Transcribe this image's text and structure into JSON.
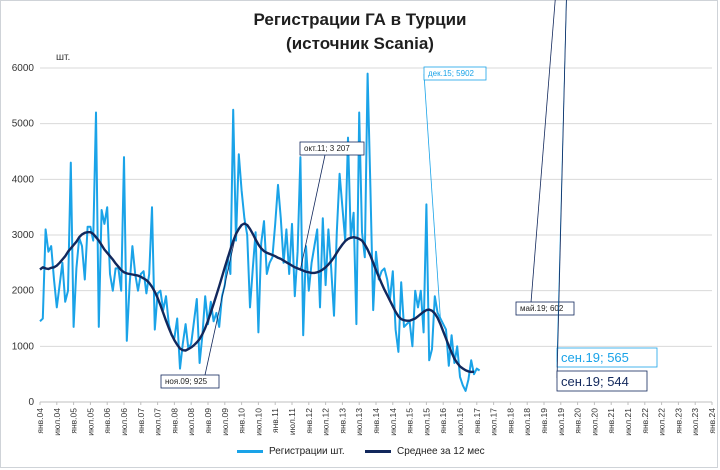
{
  "chart_data": {
    "type": "line",
    "title": "Регистрации ГА в Турции",
    "subtitle": "(источник Scania)",
    "ylabel": "шт.",
    "ylim": [
      0,
      6000
    ],
    "yticks": [
      "0",
      "1000",
      "2000",
      "3000",
      "4000",
      "5000",
      "6000"
    ],
    "grid": true,
    "legend_position": "bottom",
    "x_labels": [
      "янв.04",
      "июл.04",
      "янв.05",
      "июл.05",
      "янв.06",
      "июл.06",
      "янв.07",
      "июл.07",
      "янв.08",
      "июл.08",
      "янв.09",
      "июл.09",
      "янв.10",
      "июл.10",
      "янв.11",
      "июл.11",
      "янв.12",
      "июл.12",
      "янв.13",
      "июл.13",
      "янв.14",
      "июл.14",
      "янв.15",
      "июл.15",
      "янв.16",
      "июл.16",
      "янв.17",
      "июл.17",
      "янв.18",
      "июл.18",
      "янв.19",
      "июл.19",
      "янв.20",
      "июл.20",
      "янв.21",
      "июл.21",
      "янв.22",
      "июл.22",
      "янв.23",
      "июл.23",
      "янв.24"
    ],
    "series": [
      {
        "name": "Регистрации шт.",
        "color": "#1aa3e8",
        "values": [
          1450,
          1500,
          3100,
          2700,
          2800,
          2200,
          1700,
          2100,
          2500,
          1800,
          2000,
          4300,
          1350,
          2400,
          2950,
          2800,
          2200,
          3150,
          3150,
          2900,
          5200,
          1350,
          3450,
          3200,
          3500,
          2300,
          2000,
          2400,
          2400,
          2000,
          4400,
          1100,
          2100,
          2800,
          2300,
          2000,
          2300,
          2350,
          1950,
          2300,
          3500,
          1300,
          1950,
          2000,
          1650,
          1900,
          1400,
          1200,
          1150,
          1500,
          600,
          1050,
          1400,
          950,
          1050,
          1450,
          1850,
          700,
          1200,
          1900,
          1400,
          1800,
          1450,
          1600,
          1350,
          1900,
          2100,
          2600,
          2300,
          5250,
          2900,
          4450,
          3800,
          3300,
          3000,
          1700,
          2400,
          3050,
          1250,
          2850,
          3250,
          2300,
          2500,
          2600,
          3200,
          3900,
          3300,
          2500,
          3100,
          2300,
          3200,
          1900,
          2700,
          4400,
          1200,
          2800,
          2000,
          2500,
          2800,
          3100,
          1700,
          3300,
          2100,
          3100,
          2400,
          1550,
          3050,
          4100,
          3500,
          2900,
          4750,
          2950,
          3400,
          1400,
          5200,
          3050,
          2600,
          5900,
          3850,
          1650,
          2700,
          2200,
          2350,
          2400,
          2200,
          1850,
          2350,
          1300,
          900,
          2150,
          1350,
          1400,
          1450,
          1000,
          2000,
          1700,
          2000,
          1250,
          3550,
          750,
          950,
          1900,
          1600,
          1500,
          1400,
          1300,
          650,
          1200,
          700,
          1000,
          450,
          300,
          200,
          400,
          750,
          500,
          600,
          565
        ]
      },
      {
        "name": "Среднее за 12 мес",
        "color": "#12285c",
        "values": [
          2380,
          2420,
          2400,
          2390,
          2410,
          2420,
          2450,
          2500,
          2560,
          2620,
          2700,
          2760,
          2820,
          2880,
          2960,
          3010,
          3040,
          3050,
          3050,
          3020,
          2960,
          2900,
          2820,
          2740,
          2680,
          2620,
          2560,
          2490,
          2430,
          2370,
          2330,
          2310,
          2300,
          2290,
          2280,
          2270,
          2250,
          2220,
          2190,
          2140,
          2070,
          1980,
          1870,
          1740,
          1600,
          1460,
          1330,
          1210,
          1110,
          1030,
          960,
          930,
          925,
          950,
          980,
          1020,
          1070,
          1130,
          1220,
          1330,
          1460,
          1610,
          1760,
          1920,
          2080,
          2250,
          2420,
          2580,
          2740,
          2890,
          3020,
          3110,
          3180,
          3207,
          3180,
          3110,
          3020,
          2920,
          2830,
          2760,
          2710,
          2680,
          2660,
          2640,
          2620,
          2590,
          2570,
          2540,
          2510,
          2480,
          2450,
          2420,
          2400,
          2380,
          2360,
          2340,
          2330,
          2320,
          2320,
          2330,
          2350,
          2380,
          2420,
          2470,
          2530,
          2600,
          2680,
          2760,
          2830,
          2890,
          2930,
          2950,
          2960,
          2950,
          2930,
          2900,
          2830,
          2740,
          2630,
          2500,
          2370,
          2250,
          2130,
          2020,
          1920,
          1820,
          1720,
          1620,
          1540,
          1490,
          1470,
          1460,
          1460,
          1480,
          1500,
          1540,
          1580,
          1620,
          1650,
          1660,
          1640,
          1590,
          1510,
          1400,
          1270,
          1140,
          1010,
          890,
          780,
          700,
          640,
          602,
          570,
          550,
          540,
          544
        ]
      }
    ],
    "annotations": [
      {
        "text": "дек.15; 5902"
      },
      {
        "text": "окт.11; 3 207"
      },
      {
        "text": "ноя.09; 925"
      },
      {
        "text": "май.19; 602"
      },
      {
        "text": "сен.19; 565"
      },
      {
        "text": "сен.19; 544"
      }
    ]
  }
}
